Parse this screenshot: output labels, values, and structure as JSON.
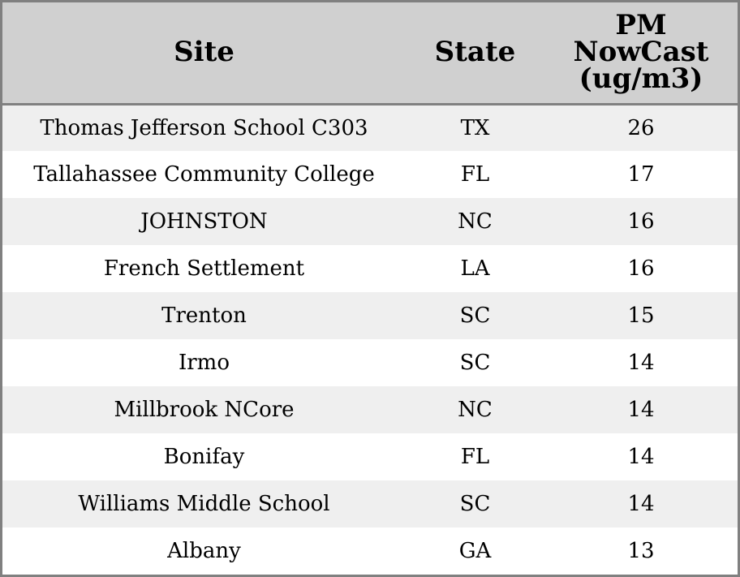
{
  "chart_data": {
    "type": "table",
    "columns": [
      "Site",
      "State",
      "PM NowCast (ug/m3)"
    ],
    "header_lines": {
      "site": "Site",
      "state": "State",
      "value_line1": "PM",
      "value_line2": "NowCast",
      "value_line3": "(ug/m3)"
    },
    "rows": [
      {
        "site": "Thomas Jefferson School C303",
        "state": "TX",
        "value": 26
      },
      {
        "site": "Tallahassee Community College",
        "state": "FL",
        "value": 17
      },
      {
        "site": "JOHNSTON",
        "state": "NC",
        "value": 16
      },
      {
        "site": "French Settlement",
        "state": "LA",
        "value": 16
      },
      {
        "site": "Trenton",
        "state": "SC",
        "value": 15
      },
      {
        "site": "Irmo",
        "state": "SC",
        "value": 14
      },
      {
        "site": "Millbrook NCore",
        "state": "NC",
        "value": 14
      },
      {
        "site": "Bonifay",
        "state": "FL",
        "value": 14
      },
      {
        "site": "Williams Middle School",
        "state": "SC",
        "value": 14
      },
      {
        "site": "Albany",
        "state": "GA",
        "value": 13
      }
    ]
  },
  "colors": {
    "header_bg": "#d0d0d0",
    "row_shaded": "#efefef",
    "row_plain": "#ffffff",
    "border": "#808080"
  }
}
